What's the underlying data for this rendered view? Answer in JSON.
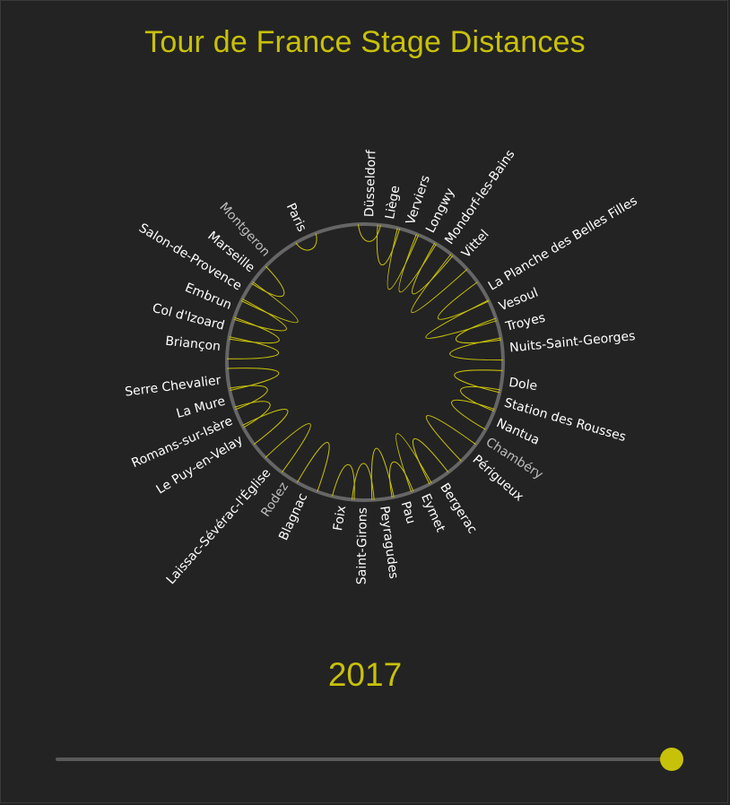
{
  "page": {
    "title": "Tour de France Stage Distances",
    "year": "2017"
  },
  "slider": {
    "value": 2017,
    "position": 1.0
  },
  "colors": {
    "background": "#232323",
    "accent": "#c8c10a",
    "ring": "#666666",
    "label": "#ffffff",
    "rest_day_label": "#bdbdbd"
  },
  "chart_data": {
    "type": "radial-line",
    "title": "Tour de France Stage Distances",
    "year": 2017,
    "stages": [
      {
        "city": "Düsseldorf",
        "extent": 0.2,
        "angle": 1.8,
        "rest": false
      },
      {
        "city": "Liège",
        "extent": 0.46,
        "angle": 9.9,
        "rest": false
      },
      {
        "city": "Verviers",
        "extent": 0.72,
        "angle": 18.2,
        "rest": false
      },
      {
        "city": "Longwy",
        "extent": 0.7,
        "angle": 26.5,
        "rest": false
      },
      {
        "city": "Mondorf-les-Bains",
        "extent": 0.64,
        "angle": 34.9,
        "rest": false
      },
      {
        "city": "Vittel",
        "extent": 0.82,
        "angle": 43.1,
        "rest": false
      },
      {
        "city": "La Planche des Belles Filles",
        "extent": 0.62,
        "angle": 59.1,
        "rest": false
      },
      {
        "city": "Vesoul",
        "extent": 0.85,
        "angle": 67.9,
        "rest": false
      },
      {
        "city": "Troyes",
        "extent": 0.52,
        "angle": 76.1,
        "rest": false
      },
      {
        "city": "Nuits-Saint-Georges",
        "extent": 0.62,
        "angle": 84.5,
        "rest": false
      },
      {
        "city": "Dole",
        "extent": 0.56,
        "angle": 98.1,
        "rest": false
      },
      {
        "city": "Station des Rousses",
        "extent": 0.45,
        "angle": 106.2,
        "rest": false
      },
      {
        "city": "Nantua",
        "extent": 0.5,
        "angle": 114.6,
        "rest": false
      },
      {
        "city": "Chambéry",
        "extent": 0.0,
        "angle": 122.9,
        "rest": true
      },
      {
        "city": "Périgueux",
        "extent": 0.66,
        "angle": 131.2,
        "rest": false
      },
      {
        "city": "Bergerac",
        "extent": 0.55,
        "angle": 147.5,
        "rest": false
      },
      {
        "city": "Eymet",
        "extent": 0.7,
        "angle": 155.8,
        "rest": false
      },
      {
        "city": "Pau",
        "extent": 0.4,
        "angle": 164.1,
        "rest": false
      },
      {
        "city": "Peyragudes",
        "extent": 0.6,
        "angle": 172.5,
        "rest": false
      },
      {
        "city": "Saint-Girons",
        "extent": 0.43,
        "angle": 180.8,
        "rest": false
      },
      {
        "city": "Foix",
        "extent": 0.4,
        "angle": 189.1,
        "rest": false
      },
      {
        "city": "Blagnac",
        "extent": 0.58,
        "angle": 204.8,
        "rest": false
      },
      {
        "city": "Rodez",
        "extent": 0.0,
        "angle": 213.2,
        "rest": true
      },
      {
        "city": "Laissac-Sévérac-l'Église",
        "extent": 0.65,
        "angle": 221.6,
        "rest": false
      },
      {
        "city": "Le Puy-en-Velay",
        "extent": 0.55,
        "angle": 238.1,
        "rest": false
      },
      {
        "city": "Romans-sur-Isère",
        "extent": 0.4,
        "angle": 246.3,
        "rest": false
      },
      {
        "city": "La Mure",
        "extent": 0.43,
        "angle": 254.5,
        "rest": false
      },
      {
        "city": "Serre Chevalier",
        "extent": 0.6,
        "angle": 262.8,
        "rest": false
      },
      {
        "city": "Briançon",
        "extent": 0.6,
        "angle": 276.0,
        "rest": false
      },
      {
        "city": "Col d'Izoard",
        "extent": 0.58,
        "angle": 284.3,
        "rest": false
      },
      {
        "city": "Embrun",
        "extent": 0.62,
        "angle": 292.7,
        "rest": false
      },
      {
        "city": "Salon-de-Provence",
        "extent": 0.7,
        "angle": 301.0,
        "rest": false
      },
      {
        "city": "Marseille",
        "extent": 0.38,
        "angle": 309.4,
        "rest": false
      },
      {
        "city": "Montgeron",
        "extent": 0.0,
        "angle": 317.7,
        "rest": true
      },
      {
        "city": "Paris",
        "extent": 0.15,
        "angle": 334.5,
        "rest": false
      }
    ]
  }
}
